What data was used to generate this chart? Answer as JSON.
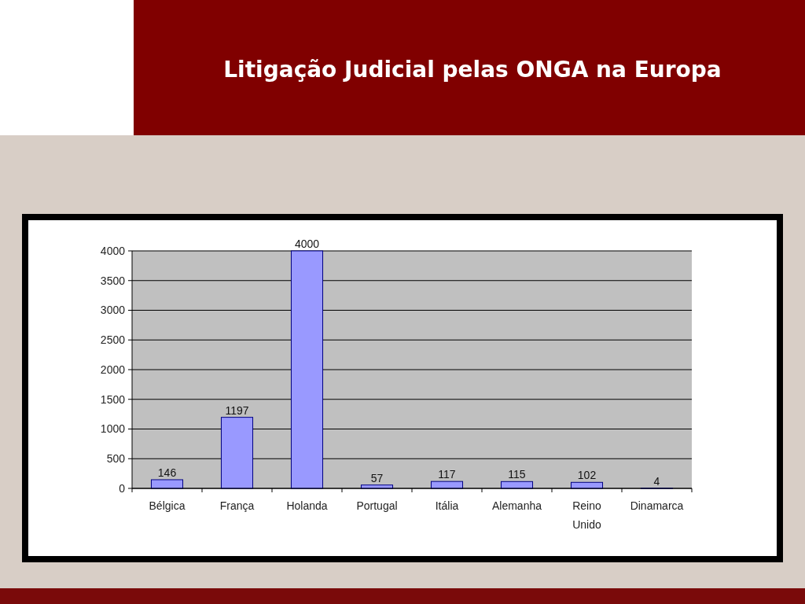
{
  "chart_data": {
    "type": "bar",
    "title": "Litigação Judicial pelas ONGA na Europa",
    "categories": [
      "Bélgica",
      "França",
      "Holanda",
      "Portugal",
      "Itália",
      "Alemanha",
      "Reino Unido",
      "Dinamarca"
    ],
    "values": [
      146,
      1197,
      4000,
      57,
      117,
      115,
      102,
      4
    ],
    "color": "#9999ff",
    "ylim": [
      0,
      4000
    ],
    "yticks": [
      0,
      500,
      1000,
      1500,
      2000,
      2500,
      3000,
      3500,
      4000
    ],
    "grid": "y",
    "data_labels": true
  }
}
